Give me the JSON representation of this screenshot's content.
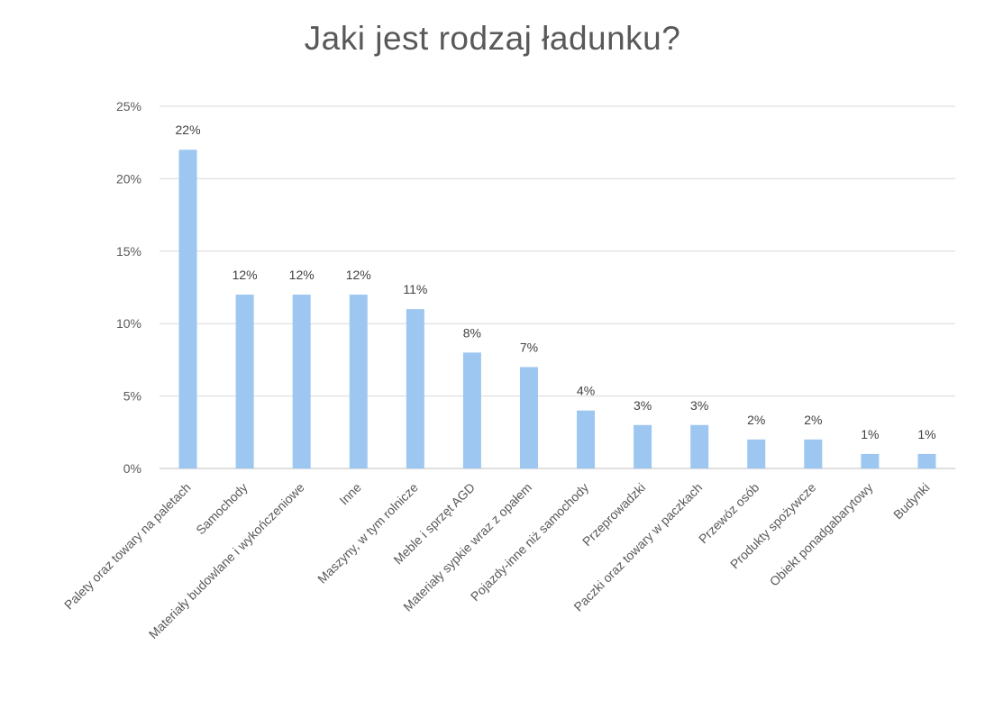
{
  "chart_data": {
    "type": "bar",
    "title": "Jaki jest rodzaj ładunku?",
    "xlabel": "",
    "ylabel": "",
    "categories": [
      "Palety oraz towary na paletach",
      "Samochody",
      "Materiały budowlane i wykończeniowe",
      "Inne",
      "Maszyny, w tym rolnicze",
      "Meble i sprzęt AGD",
      "Materiały sypkie wraz z opałem",
      "Pojazdy-inne niż samochody",
      "Przeprowadzki",
      "Paczki oraz towary w paczkach",
      "Przewóz osób",
      "Produkty spożywcze",
      "Obiekt ponadgabarytowy",
      "Budynki"
    ],
    "values": [
      22,
      12,
      12,
      12,
      11,
      8,
      7,
      4,
      3,
      3,
      2,
      2,
      1,
      1
    ],
    "data_labels": [
      "22%",
      "12%",
      "12%",
      "12%",
      "11%",
      "8%",
      "7%",
      "4%",
      "3%",
      "3%",
      "2%",
      "2%",
      "1%",
      "1%"
    ],
    "y_ticks": [
      0,
      5,
      10,
      15,
      20,
      25
    ],
    "y_tick_labels": [
      "0%",
      "5%",
      "10%",
      "15%",
      "20%",
      "25%"
    ],
    "ylim": [
      0,
      25
    ],
    "grid": true,
    "legend": "none",
    "bar_color": "#9dc7f1",
    "grid_color": "#d9d9d9"
  }
}
